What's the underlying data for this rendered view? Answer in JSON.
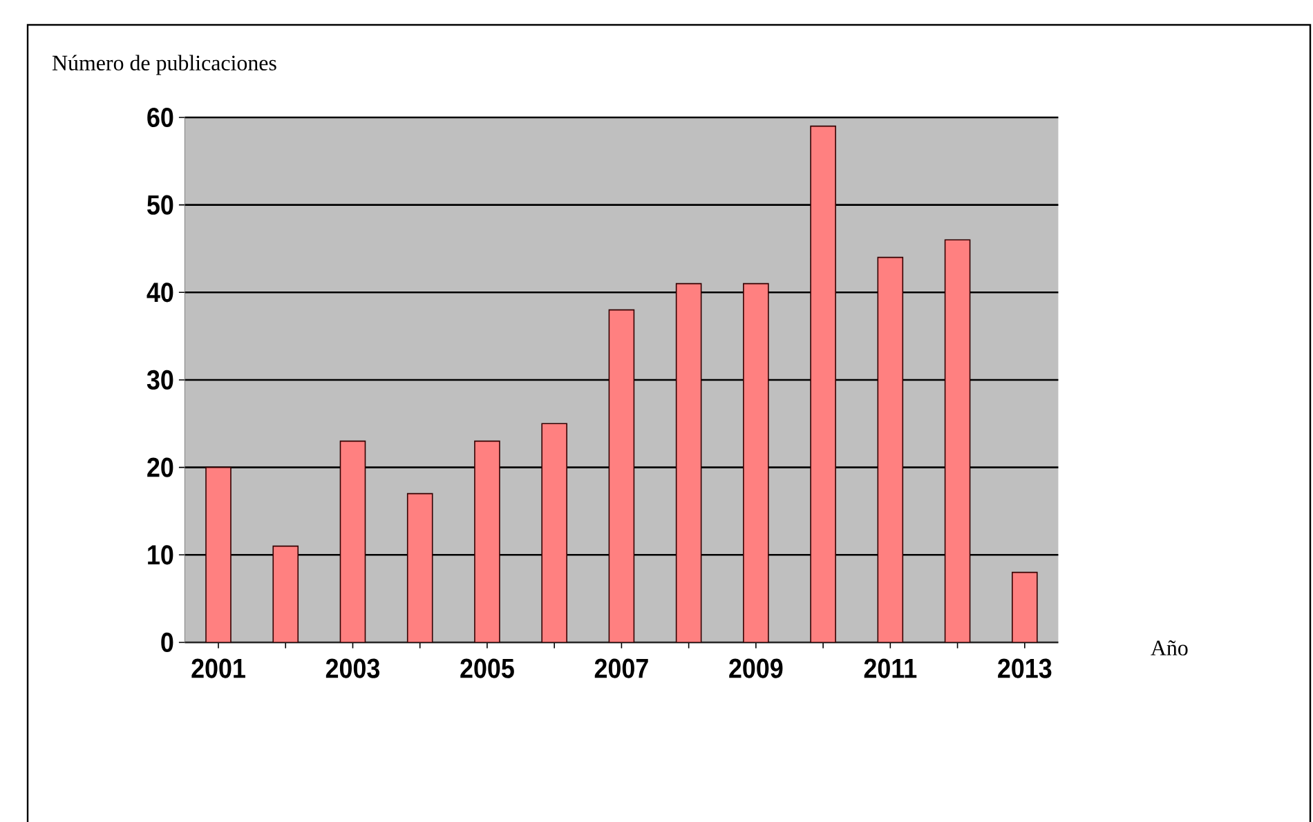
{
  "chart_data": {
    "type": "bar",
    "ylabel": "Número de publicaciones",
    "xlabel": "Año",
    "categories": [
      "2001",
      null,
      "2003",
      null,
      "2005",
      null,
      "2007",
      null,
      "2009",
      null,
      "2011",
      null,
      "2013"
    ],
    "values": [
      20,
      11,
      23,
      17,
      23,
      25,
      38,
      41,
      41,
      59,
      44,
      46,
      8
    ],
    "color": "#ff8080",
    "ylim": [
      0,
      60
    ],
    "yticks": [
      0,
      10,
      20,
      30,
      40,
      50,
      60
    ],
    "grid": "y"
  }
}
